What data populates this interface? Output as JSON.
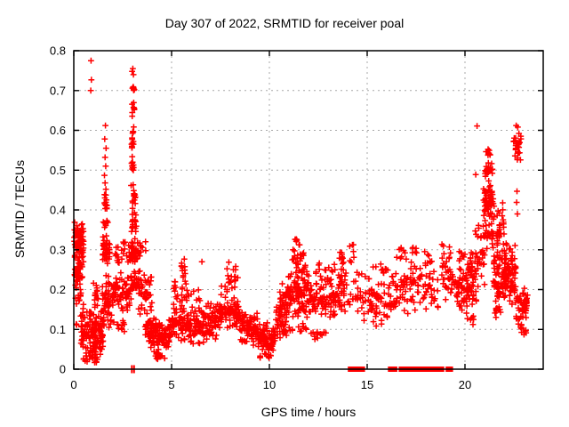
{
  "chart": {
    "title": "Day 307 of 2022, SRMTID for receiver poal",
    "xlabel": "GPS time / hours",
    "ylabel": "SRMTID / TECUs"
  },
  "chart_data": {
    "type": "scatter",
    "title": "Day 307 of 2022, SRMTID for receiver poal",
    "xlabel": "GPS time / hours",
    "ylabel": "SRMTID / TECUs",
    "xlim": [
      0,
      24
    ],
    "ylim": [
      0,
      0.8
    ],
    "xticks": [
      0,
      5,
      10,
      15,
      20
    ],
    "xtick_labels": [
      "0",
      "5",
      "10",
      "15",
      "20"
    ],
    "yticks": [
      0,
      0.1,
      0.2,
      0.3,
      0.4,
      0.5,
      0.6,
      0.7,
      0.8
    ],
    "ytick_labels": [
      "0",
      "0.1",
      "0.2",
      "0.3",
      "0.4",
      "0.5",
      "0.6",
      "0.7",
      "0.8"
    ],
    "grid": true,
    "legend": "none",
    "marker_symbol": "plus",
    "marker_color": "#ff0000",
    "grid_color": "#a8a8a8",
    "border_color": "#000000",
    "seed": 20221107,
    "clusters_format": "[x_start, x_end, y_min, y_max, n_points]",
    "clusters": [
      [
        0.02,
        0.5,
        0.26,
        0.375,
        80
      ],
      [
        0.02,
        0.45,
        0.21,
        0.27,
        30
      ],
      [
        0.05,
        0.5,
        0.15,
        0.22,
        14
      ],
      [
        0.1,
        0.6,
        0.1,
        0.16,
        6
      ],
      [
        0.35,
        1.55,
        0.03,
        0.16,
        140
      ],
      [
        0.5,
        1.3,
        0.015,
        0.05,
        28
      ],
      [
        0.9,
        1.25,
        0.15,
        0.22,
        15
      ],
      [
        1.52,
        1.72,
        0.395,
        0.445,
        13
      ],
      [
        1.5,
        1.78,
        0.345,
        0.39,
        8
      ],
      [
        1.45,
        1.85,
        0.25,
        0.34,
        40
      ],
      [
        1.45,
        2.05,
        0.1,
        0.25,
        55
      ],
      [
        2.0,
        2.95,
        0.13,
        0.25,
        65
      ],
      [
        2.1,
        2.9,
        0.25,
        0.33,
        22
      ],
      [
        2.2,
        2.6,
        0.08,
        0.13,
        10
      ],
      [
        2.96,
        3.1,
        0.69,
        0.715,
        9
      ],
      [
        2.97,
        3.12,
        0.63,
        0.685,
        8
      ],
      [
        2.95,
        3.12,
        0.54,
        0.625,
        13
      ],
      [
        2.95,
        3.1,
        0.48,
        0.54,
        10
      ],
      [
        2.93,
        3.15,
        0.4,
        0.48,
        15
      ],
      [
        2.9,
        3.2,
        0.33,
        0.4,
        18
      ],
      [
        2.85,
        3.3,
        0.26,
        0.33,
        38
      ],
      [
        2.9,
        3.5,
        0.18,
        0.26,
        28
      ],
      [
        3.2,
        3.7,
        0.25,
        0.35,
        12
      ],
      [
        3.3,
        4.0,
        0.13,
        0.25,
        38
      ],
      [
        3.6,
        4.2,
        0.08,
        0.14,
        28
      ],
      [
        3.8,
        4.95,
        0.045,
        0.13,
        95
      ],
      [
        4.1,
        4.7,
        0.02,
        0.05,
        14
      ],
      [
        4.95,
        6.5,
        0.06,
        0.17,
        115
      ],
      [
        5.0,
        6.5,
        0.16,
        0.21,
        20
      ],
      [
        5.5,
        5.75,
        0.21,
        0.285,
        13
      ],
      [
        5.05,
        5.25,
        0.19,
        0.24,
        6
      ],
      [
        6.5,
        7.3,
        0.06,
        0.18,
        68
      ],
      [
        7.3,
        8.5,
        0.09,
        0.2,
        88
      ],
      [
        7.55,
        8.45,
        0.19,
        0.245,
        18
      ],
      [
        7.8,
        8.3,
        0.24,
        0.27,
        5
      ],
      [
        8.5,
        9.4,
        0.05,
        0.16,
        72
      ],
      [
        9.4,
        10.3,
        0.04,
        0.12,
        82
      ],
      [
        9.5,
        10.1,
        0.025,
        0.045,
        12
      ],
      [
        10.3,
        10.9,
        0.07,
        0.18,
        52
      ],
      [
        10.5,
        10.9,
        0.15,
        0.22,
        14
      ],
      [
        10.9,
        12.0,
        0.12,
        0.26,
        105
      ],
      [
        11.15,
        11.85,
        0.25,
        0.31,
        20
      ],
      [
        11.3,
        11.6,
        0.3,
        0.335,
        6
      ],
      [
        11.0,
        11.9,
        0.08,
        0.12,
        12
      ],
      [
        12.0,
        13.4,
        0.11,
        0.24,
        95
      ],
      [
        12.3,
        13.35,
        0.23,
        0.275,
        12
      ],
      [
        12.1,
        12.9,
        0.07,
        0.11,
        12
      ],
      [
        13.4,
        13.95,
        0.12,
        0.27,
        36
      ],
      [
        13.5,
        13.8,
        0.26,
        0.31,
        8
      ],
      [
        14.0,
        14.95,
        0.1,
        0.26,
        30
      ],
      [
        14.05,
        14.35,
        0.26,
        0.33,
        7
      ],
      [
        15.0,
        16.3,
        0.1,
        0.24,
        62
      ],
      [
        15.3,
        16.1,
        0.22,
        0.27,
        10
      ],
      [
        16.3,
        17.1,
        0.12,
        0.27,
        38
      ],
      [
        16.5,
        17.0,
        0.26,
        0.32,
        9
      ],
      [
        17.15,
        17.65,
        0.14,
        0.28,
        24
      ],
      [
        17.3,
        17.55,
        0.27,
        0.315,
        6
      ],
      [
        17.7,
        19.45,
        0.13,
        0.27,
        52
      ],
      [
        18.8,
        19.4,
        0.2,
        0.32,
        24
      ],
      [
        17.9,
        18.4,
        0.25,
        0.31,
        8
      ],
      [
        19.5,
        20.6,
        0.14,
        0.28,
        92
      ],
      [
        19.7,
        20.4,
        0.27,
        0.31,
        8
      ],
      [
        20.0,
        20.5,
        0.1,
        0.15,
        8
      ],
      [
        20.5,
        21.0,
        0.2,
        0.38,
        32
      ],
      [
        20.95,
        21.45,
        0.38,
        0.47,
        52
      ],
      [
        21.0,
        21.4,
        0.47,
        0.525,
        18
      ],
      [
        21.05,
        21.35,
        0.525,
        0.56,
        9
      ],
      [
        20.9,
        21.5,
        0.3,
        0.38,
        28
      ],
      [
        21.4,
        22.6,
        0.16,
        0.32,
        145
      ],
      [
        21.45,
        22.0,
        0.3,
        0.42,
        28
      ],
      [
        21.5,
        21.9,
        0.12,
        0.17,
        10
      ],
      [
        22.48,
        22.88,
        0.515,
        0.6,
        28
      ],
      [
        22.6,
        23.2,
        0.1,
        0.2,
        42
      ],
      [
        22.8,
        23.15,
        0.08,
        0.12,
        10
      ],
      [
        23.0,
        23.2,
        0.14,
        0.22,
        10
      ]
    ],
    "outlier_points": [
      [
        0.88,
        0.775
      ],
      [
        0.9,
        0.727
      ],
      [
        0.87,
        0.7
      ],
      [
        1.62,
        0.612
      ],
      [
        1.58,
        0.578
      ],
      [
        1.65,
        0.555
      ],
      [
        1.6,
        0.532
      ],
      [
        1.63,
        0.51
      ],
      [
        1.57,
        0.487
      ],
      [
        1.6,
        0.468
      ],
      [
        1.64,
        0.452
      ],
      [
        3.02,
        0.755
      ],
      [
        2.98,
        0.748
      ],
      [
        3.05,
        0.74
      ],
      [
        6.55,
        0.27
      ],
      [
        20.62,
        0.611
      ],
      [
        20.55,
        0.489
      ],
      [
        22.62,
        0.612
      ],
      [
        22.7,
        0.608
      ],
      [
        22.66,
        0.447
      ],
      [
        22.64,
        0.419
      ],
      [
        22.68,
        0.39
      ]
    ],
    "zero_value_runs": [
      [
        14.1,
        14.8
      ],
      [
        16.15,
        16.45
      ],
      [
        16.7,
        16.9
      ],
      [
        17.05,
        17.45
      ],
      [
        17.5,
        17.9
      ],
      [
        17.95,
        18.05
      ],
      [
        18.1,
        18.35
      ],
      [
        18.4,
        18.65
      ],
      [
        18.7,
        18.85
      ],
      [
        19.1,
        19.3
      ]
    ],
    "zero_value_ticks": [
      2.97,
      3.08
    ]
  }
}
